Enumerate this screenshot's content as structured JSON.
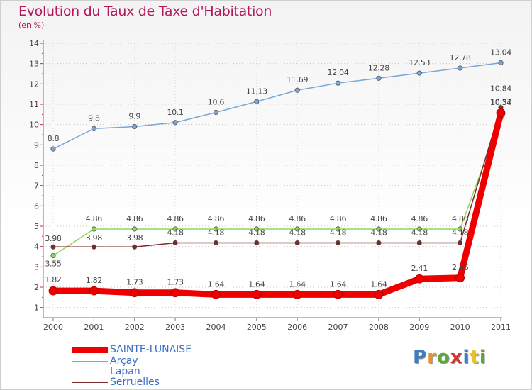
{
  "header": {
    "title": "Evolution du Taux de Taxe d'Habitation",
    "subtitle": "(en %)"
  },
  "logo": {
    "text": "Proxiti",
    "colors": [
      "#3d7ebf",
      "#e5922f",
      "#5aa83a",
      "#d6352f",
      "#3d7ebf",
      "#e5c52f",
      "#5aa83a"
    ]
  },
  "chart_data": {
    "type": "line",
    "title": "Evolution du Taux de Taxe d'Habitation",
    "subtitle": "(en %)",
    "xlabel": "",
    "ylabel": "",
    "categories": [
      "2000",
      "2001",
      "2002",
      "2003",
      "2004",
      "2005",
      "2006",
      "2007",
      "2008",
      "2009",
      "2010",
      "2011"
    ],
    "ylim": [
      0.5,
      14
    ],
    "yticks": [
      "1",
      "2",
      "3",
      "4",
      "5",
      "6",
      "7",
      "8",
      "9",
      "10",
      "11",
      "12",
      "13",
      "14"
    ],
    "grid": true,
    "legend_position": "bottom-left",
    "series": [
      {
        "name": "SAINTE-LUNAISE",
        "color": "#ee0000",
        "values": [
          1.82,
          1.82,
          1.73,
          1.73,
          1.64,
          1.64,
          1.64,
          1.64,
          1.64,
          2.41,
          2.46,
          10.57
        ],
        "labels": [
          "1.82",
          "1.82",
          "1.73",
          "1.73",
          "1.64",
          "1.64",
          "1.64",
          "1.64",
          "1.64",
          "2.41",
          "2.46",
          "10.57"
        ]
      },
      {
        "name": "Arçay",
        "color": "#7aa6d6",
        "values": [
          8.8,
          9.8,
          9.9,
          10.1,
          10.6,
          11.13,
          11.69,
          12.04,
          12.28,
          12.53,
          12.78,
          13.04
        ],
        "labels": [
          "8.8",
          "9.8",
          "9.9",
          "10.1",
          "10.6",
          "11.13",
          "11.69",
          "12.04",
          "12.28",
          "12.53",
          "12.78",
          "13.04"
        ]
      },
      {
        "name": "Lapan",
        "color": "#8fd65a",
        "values": [
          3.55,
          4.86,
          4.86,
          4.86,
          4.86,
          4.86,
          4.86,
          4.86,
          4.86,
          4.86,
          4.86,
          10.34
        ],
        "labels": [
          "3.55",
          "4.86",
          "4.86",
          "4.86",
          "4.86",
          "4.86",
          "4.86",
          "4.86",
          "4.86",
          "4.86",
          "4.86",
          "10.34"
        ]
      },
      {
        "name": "Serruelles",
        "color": "#7a2a2a",
        "values": [
          3.98,
          3.98,
          3.98,
          4.18,
          4.18,
          4.18,
          4.18,
          4.18,
          4.18,
          4.18,
          4.18,
          10.84
        ],
        "labels": [
          "3.98",
          "3.98",
          "3.98",
          "4.18",
          "4.18",
          "4.18",
          "4.18",
          "4.18",
          "4.18",
          "4.18",
          "4.18",
          "10.84"
        ]
      }
    ]
  }
}
